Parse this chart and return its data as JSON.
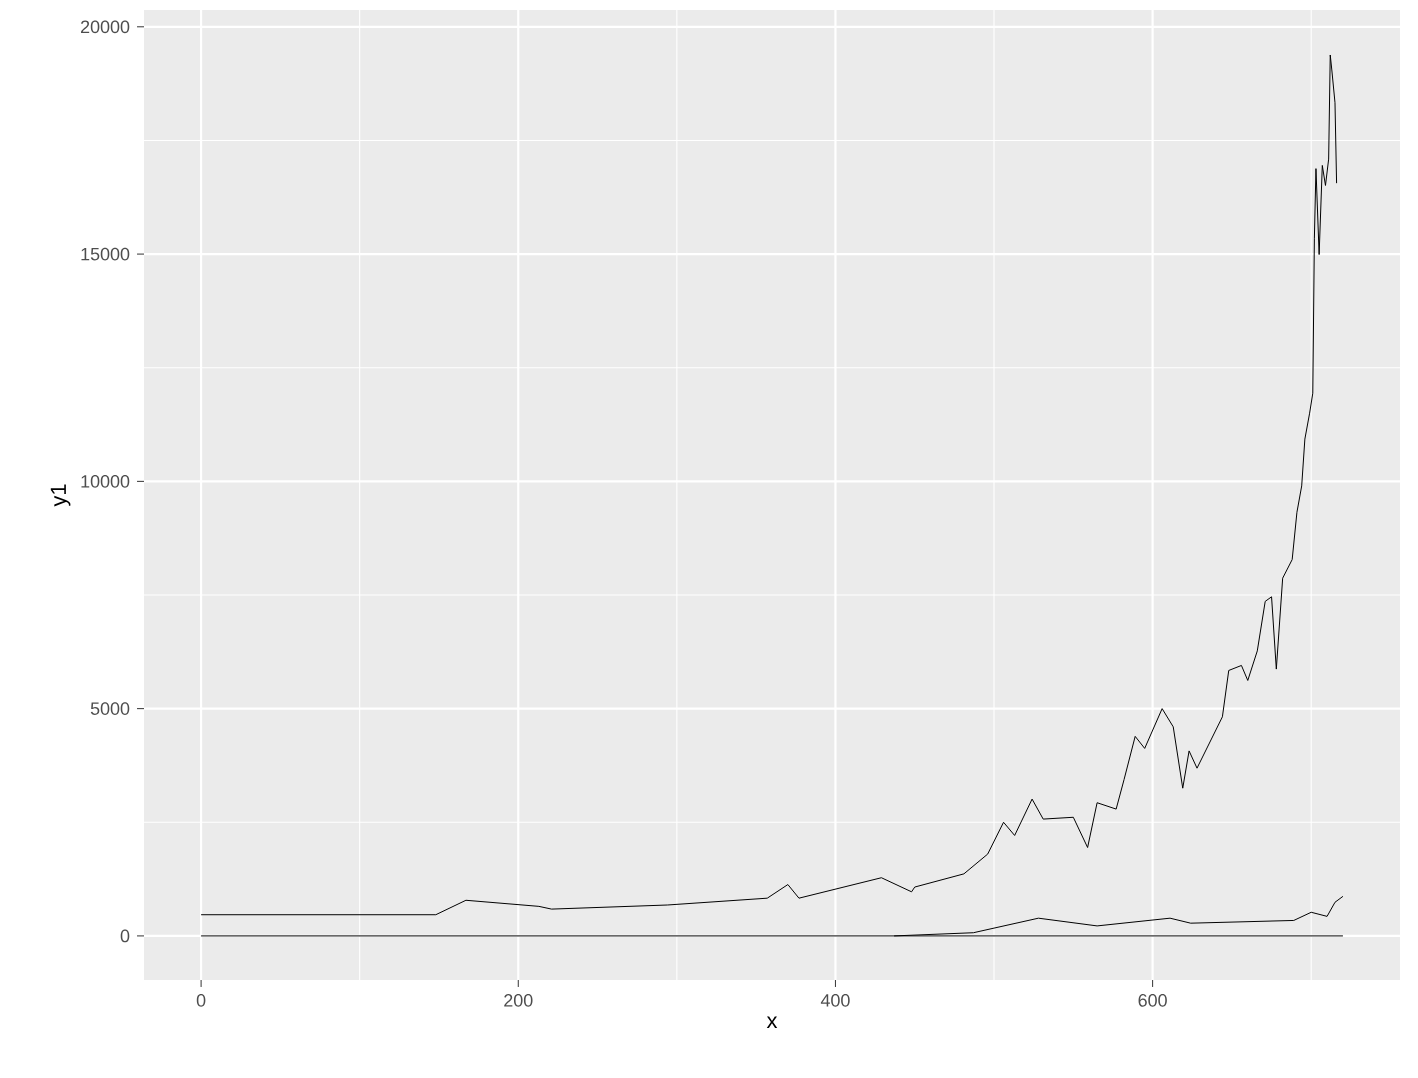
{
  "chart_data": {
    "type": "line",
    "xlabel": "x",
    "ylabel": "y1",
    "xlim": [
      -36,
      756
    ],
    "ylim": [
      -970,
      20370
    ],
    "xticks": [
      0,
      200,
      400,
      600
    ],
    "yticks": [
      0,
      5000,
      10000,
      15000,
      20000
    ],
    "grid": true,
    "series": [
      {
        "color": "#000000",
        "x": [
          0,
          148,
          167,
          213,
          221,
          294,
          357,
          370,
          377,
          429,
          448,
          450,
          481,
          496,
          506,
          513,
          524,
          531,
          550,
          559,
          565,
          577,
          582,
          589,
          595,
          606,
          613,
          619,
          623,
          628,
          644,
          648,
          656,
          660,
          666,
          671,
          675,
          678,
          682,
          688,
          691,
          694,
          696,
          699,
          701,
          702,
          703,
          705,
          707,
          709,
          711,
          712,
          713,
          715,
          716
        ],
        "values": [
          466,
          466,
          784,
          650,
          590,
          680,
          830,
          1130,
          830,
          1280,
          970,
          1075,
          1365,
          1800,
          2500,
          2210,
          3010,
          2570,
          2610,
          1945,
          2930,
          2790,
          3440,
          4390,
          4125,
          5000,
          4600,
          3250,
          4070,
          3690,
          4820,
          5840,
          5950,
          5620,
          6270,
          7360,
          7460,
          5870,
          7870,
          8280,
          9320,
          9900,
          10930,
          11500,
          11940,
          15350,
          16880,
          14990,
          16950,
          16510,
          17090,
          19380,
          19050,
          18330,
          16560
        ]
      },
      {
        "color": "#000000",
        "x": [
          437,
          487,
          528,
          565,
          611,
          624,
          689,
          700,
          710,
          715,
          720
        ],
        "values": [
          0,
          70,
          390,
          220,
          390,
          280,
          340,
          520,
          430,
          740,
          870
        ]
      },
      {
        "color": "#000000",
        "x": [
          0,
          720
        ],
        "values": [
          0,
          0
        ]
      }
    ]
  }
}
